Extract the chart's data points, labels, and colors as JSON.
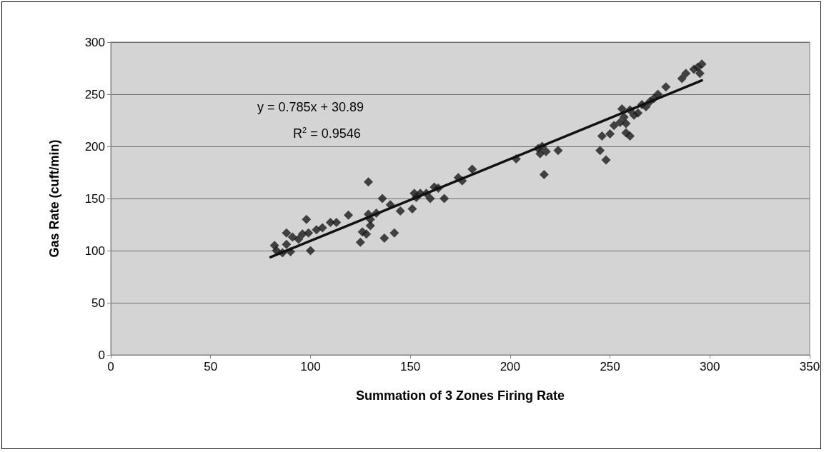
{
  "chart_data": {
    "type": "scatter",
    "xlabel": "Summation of 3 Zones Firing Rate",
    "ylabel": "Gas Rate (cuft/min)",
    "annotations": [
      "y = 0.785x + 30.89",
      "R$^{2}$ = 0.9546"
    ],
    "xlim": [
      0,
      350
    ],
    "xticks": [
      0,
      50,
      100,
      150,
      200,
      250,
      300,
      350
    ],
    "ylim": [
      0,
      300
    ],
    "yticks": [
      0,
      50,
      100,
      150,
      200,
      250,
      300
    ],
    "grid": "y",
    "marker": "diamond",
    "series": [
      {
        "color": "#1a1a1a",
        "x": [
          82,
          83,
          86,
          88,
          88,
          90,
          91,
          94,
          96,
          98,
          99,
          100,
          103,
          106,
          110,
          113,
          119,
          125,
          126,
          128,
          129,
          129,
          130,
          130,
          133,
          136,
          137,
          140,
          142,
          145,
          151,
          152,
          153,
          155,
          158,
          160,
          162,
          164,
          167,
          174,
          176,
          181,
          203,
          214,
          215,
          216,
          217,
          218,
          224,
          245,
          246,
          248,
          250,
          252,
          255,
          256,
          257,
          258,
          258,
          260,
          260,
          262,
          264,
          266,
          268,
          270,
          272,
          274,
          278,
          286,
          288,
          292,
          294,
          295,
          296
        ],
        "values": [
          105,
          100,
          98,
          117,
          106,
          99,
          113,
          111,
          116,
          130,
          117,
          100,
          120,
          122,
          127,
          127,
          134,
          108,
          118,
          116,
          166,
          135,
          124,
          130,
          136,
          150,
          112,
          144,
          117,
          138,
          140,
          155,
          151,
          155,
          155,
          150,
          161,
          160,
          150,
          170,
          167,
          178,
          188,
          198,
          193,
          200,
          173,
          195,
          196,
          196,
          210,
          187,
          212,
          220,
          223,
          236,
          228,
          222,
          213,
          210,
          235,
          230,
          232,
          240,
          238,
          243,
          246,
          250,
          257,
          265,
          270,
          274,
          276,
          270,
          279
        ]
      },
      {
        "type": "line",
        "color": "#111111",
        "marker": "none",
        "x": [
          80,
          296
        ],
        "values": [
          93.7,
          263.3
        ]
      }
    ]
  }
}
